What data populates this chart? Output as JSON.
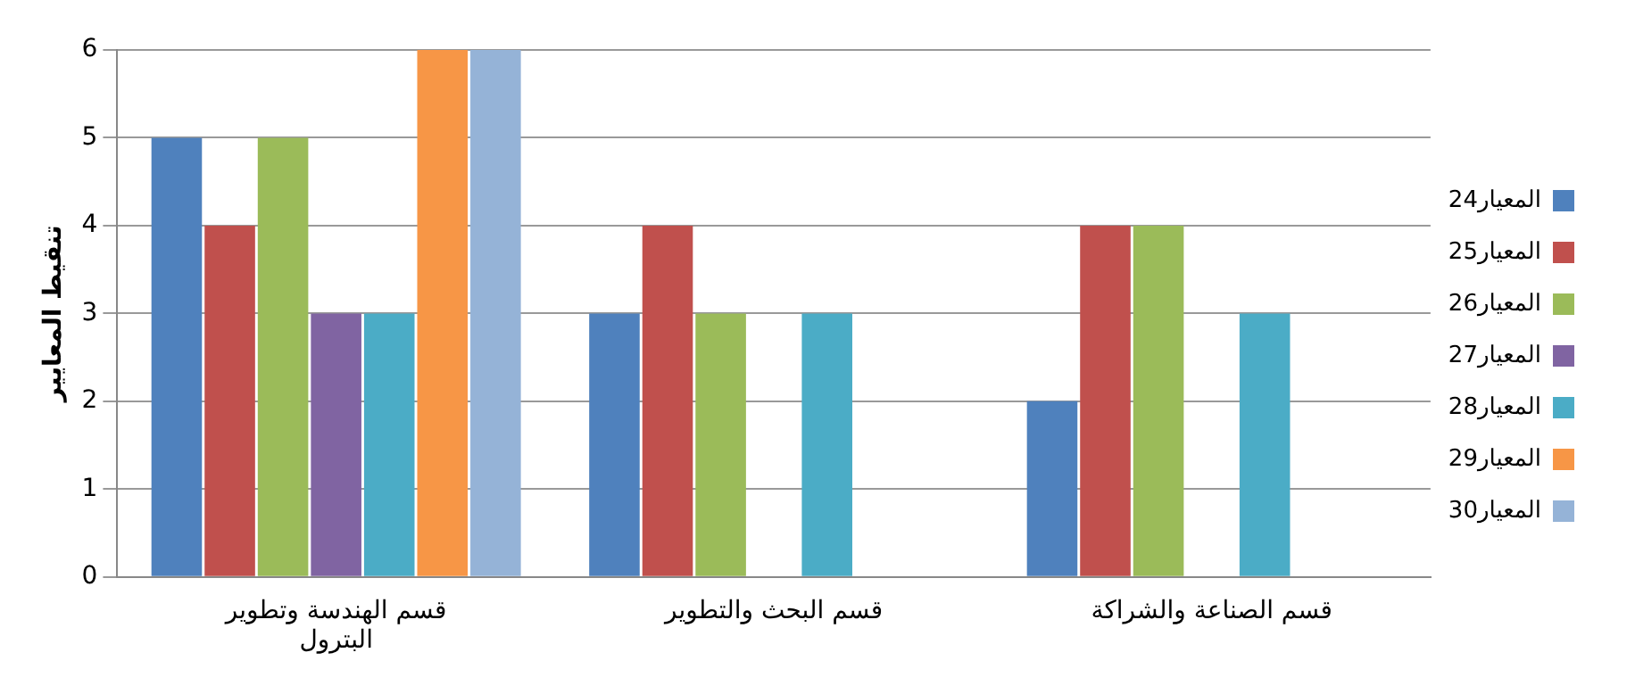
{
  "chart_data": {
    "type": "bar",
    "ylabel": "تنقيط المعايير",
    "categories": [
      "قسم الهندسة وتطوير البترول",
      "قسم البحث والتطوير",
      "قسم الصناعة والشراكة"
    ],
    "series": [
      {
        "name": "المعيار24",
        "color": "#4f81bd",
        "values": [
          5,
          3,
          2
        ]
      },
      {
        "name": "المعيار25",
        "color": "#c0504d",
        "values": [
          4,
          4,
          4
        ]
      },
      {
        "name": "المعيار26",
        "color": "#9bbb59",
        "values": [
          5,
          3,
          4
        ]
      },
      {
        "name": "المعيار27",
        "color": "#8064a2",
        "values": [
          3,
          0,
          0
        ]
      },
      {
        "name": "المعيار28",
        "color": "#4bacc6",
        "values": [
          3,
          3,
          3
        ]
      },
      {
        "name": "المعيار29",
        "color": "#f79646",
        "values": [
          6,
          0,
          0
        ]
      },
      {
        "name": "المعيار30",
        "color": "#95b3d7",
        "values": [
          6,
          0,
          0
        ]
      }
    ],
    "ylim": [
      0,
      6
    ],
    "yticks": [
      0,
      1,
      2,
      3,
      4,
      5,
      6
    ],
    "grid": "y",
    "legend": "right"
  }
}
